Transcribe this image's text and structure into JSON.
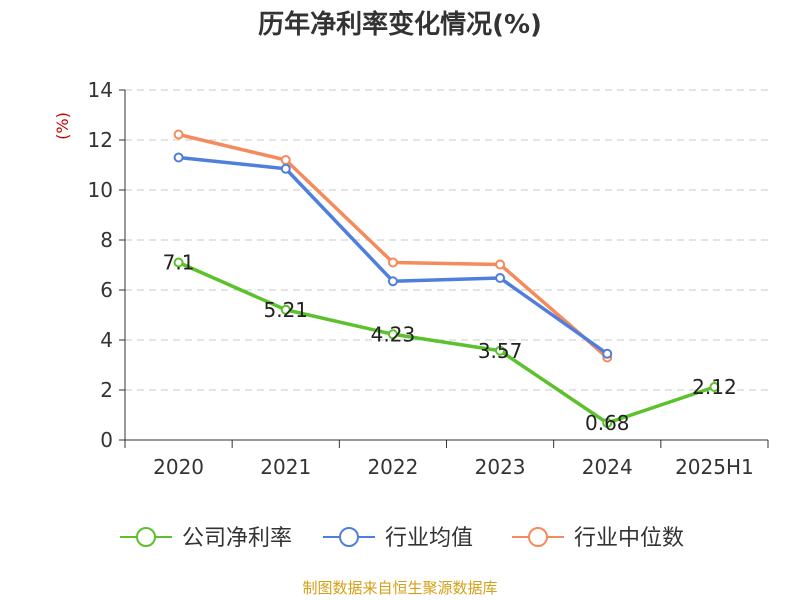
{
  "chart_data": {
    "type": "line",
    "title": "历年净利率变化情况(%)",
    "ylabel": "(%)",
    "xlabel": "",
    "categories": [
      "2020",
      "2021",
      "2022",
      "2023",
      "2024",
      "2025H1"
    ],
    "ylim": [
      0,
      14
    ],
    "yticks": [
      0,
      2,
      4,
      6,
      8,
      10,
      12,
      14
    ],
    "grid": true,
    "legend_position": "bottom",
    "series": [
      {
        "name": "公司净利率",
        "color": "#5cc12d",
        "values": [
          7.1,
          5.21,
          4.23,
          3.57,
          0.68,
          2.12
        ],
        "labels": [
          "7.1",
          "5.21",
          "4.23",
          "3.57",
          "0.68",
          "2.12"
        ]
      },
      {
        "name": "行业均值",
        "color": "#4f7fdc",
        "values": [
          11.3,
          10.85,
          6.35,
          6.48,
          3.45,
          null
        ]
      },
      {
        "name": "行业中位数",
        "color": "#f58a5c",
        "values": [
          12.22,
          11.2,
          7.1,
          7.02,
          3.3,
          null
        ]
      }
    ]
  },
  "footer": {
    "source": "制图数据来自恒生聚源数据库",
    "color": "#d4a017"
  },
  "colors": {
    "axis": "#333333",
    "grid": "#c8c8c8",
    "ylabel": "#cc0000"
  }
}
